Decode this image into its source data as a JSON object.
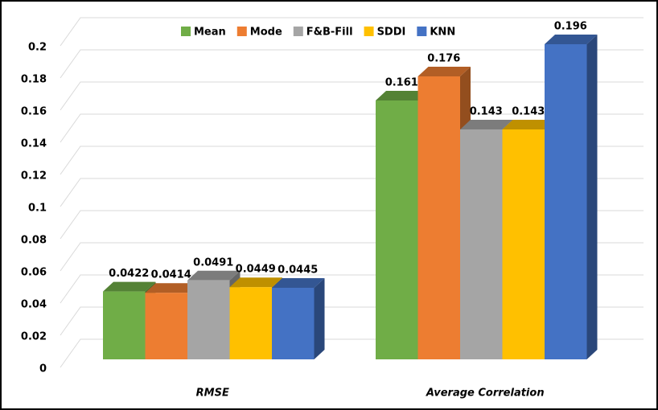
{
  "chart_data": {
    "type": "bar3d",
    "categories": [
      "RMSE",
      "Average Correlation"
    ],
    "series": [
      {
        "name": "Mean",
        "color": "#70ad47",
        "values": [
          0.0422,
          0.161
        ]
      },
      {
        "name": "Mode",
        "color": "#ed7d31",
        "values": [
          0.0414,
          0.176
        ]
      },
      {
        "name": "F&B-Fill",
        "color": "#a5a5a5",
        "values": [
          0.0491,
          0.143
        ]
      },
      {
        "name": "SDDI",
        "color": "#ffc000",
        "values": [
          0.0449,
          0.143
        ]
      },
      {
        "name": "KNN",
        "color": "#4472c4",
        "values": [
          0.0445,
          0.196
        ]
      }
    ],
    "ylim": [
      0,
      0.2
    ],
    "yticks": [
      0,
      0.02,
      0.04,
      0.06,
      0.08,
      0.1,
      0.12,
      0.14,
      0.16,
      0.18,
      0.2
    ],
    "grid": true,
    "legend": "top"
  }
}
